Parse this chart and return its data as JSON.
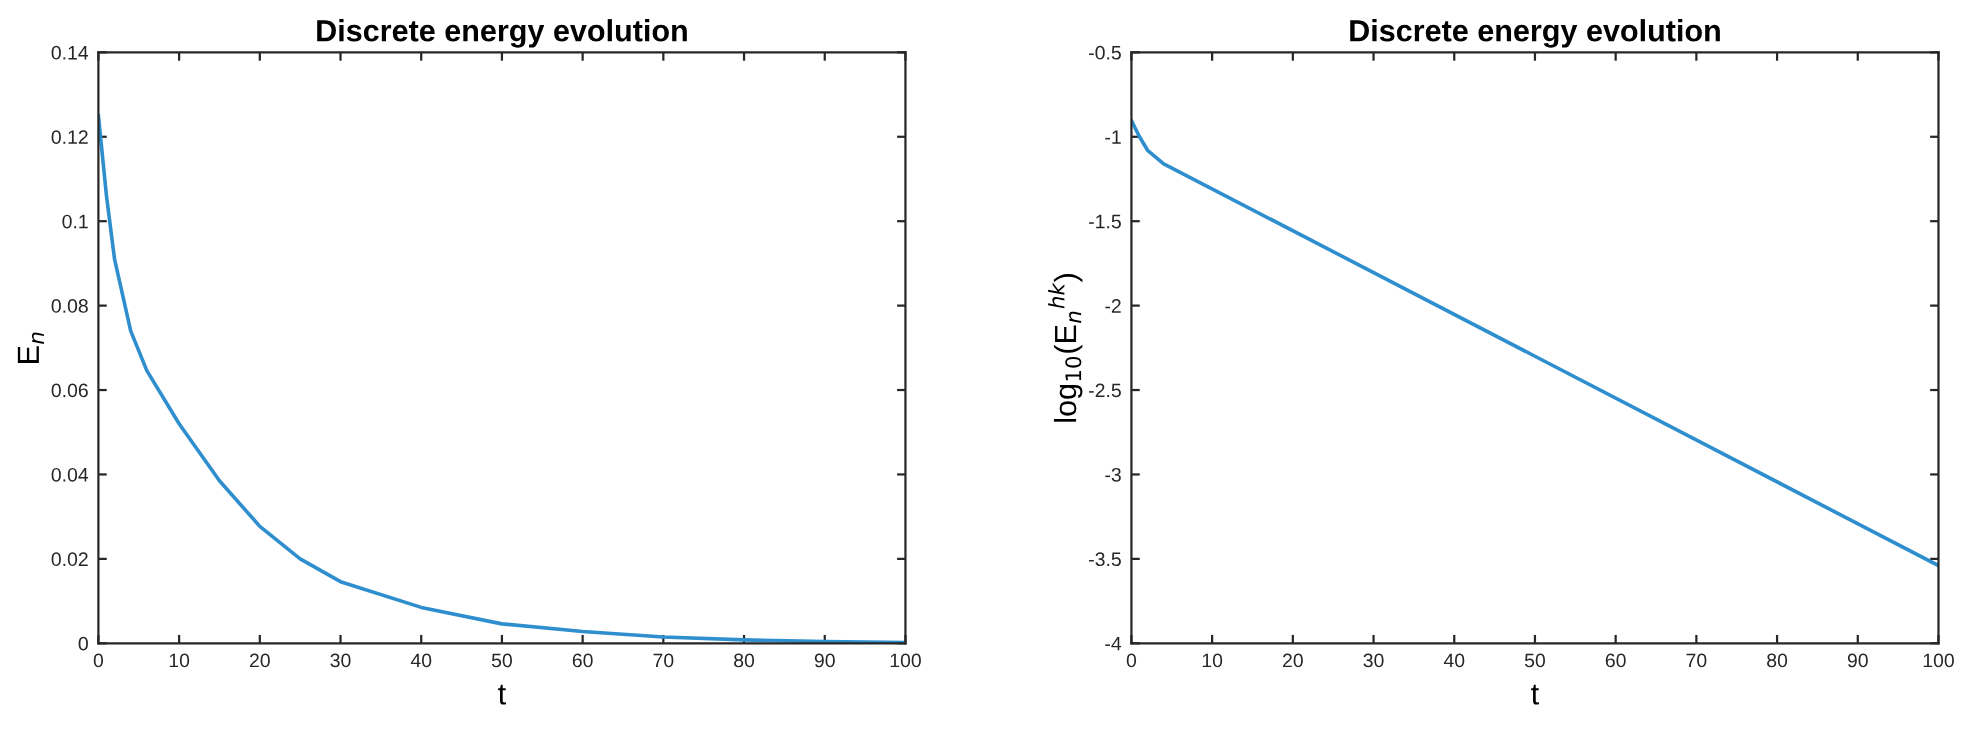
{
  "chart_data": [
    {
      "type": "line",
      "title": "Discrete energy evolution",
      "xlabel": "t",
      "ylabel": "E$_{n}$",
      "xlim": [
        0,
        100
      ],
      "ylim": [
        0,
        0.14
      ],
      "xticks": [
        0,
        10,
        20,
        30,
        40,
        50,
        60,
        70,
        80,
        90,
        100
      ],
      "yticks": [
        0,
        0.02,
        0.04,
        0.06,
        0.08,
        0.1,
        0.12,
        0.14
      ],
      "grid": false,
      "legend": false,
      "series": [
        {
          "color": "#2f8fce",
          "x": [
            0,
            1,
            2,
            4,
            6,
            10,
            15,
            20,
            25,
            30,
            40,
            50,
            60,
            70,
            80,
            90,
            100
          ],
          "values": [
            0.125,
            0.106,
            0.091,
            0.074,
            0.0646,
            0.052,
            0.0385,
            0.0277,
            0.02,
            0.0146,
            0.0085,
            0.0046,
            0.0028,
            0.0015,
            0.0008,
            0.0004,
            0.0002
          ]
        }
      ]
    },
    {
      "type": "line",
      "title": "Discrete energy evolution",
      "xlabel": "t",
      "ylabel": "log$_{10}$(E$_{n}$$^{hk}$)",
      "xlim": [
        0,
        100
      ],
      "ylim": [
        -4,
        -0.5
      ],
      "xticks": [
        0,
        10,
        20,
        30,
        40,
        50,
        60,
        70,
        80,
        90,
        100
      ],
      "yticks": [
        -4,
        -3.5,
        -3,
        -2.5,
        -2,
        -1.5,
        -1,
        -0.5
      ],
      "grid": false,
      "legend": false,
      "series": [
        {
          "color": "#2f8fce",
          "x": [
            0,
            1,
            2,
            4,
            50,
            100
          ],
          "values": [
            -0.904,
            -1.0,
            -1.08,
            -1.16,
            -2.3,
            -3.54
          ]
        }
      ]
    }
  ]
}
